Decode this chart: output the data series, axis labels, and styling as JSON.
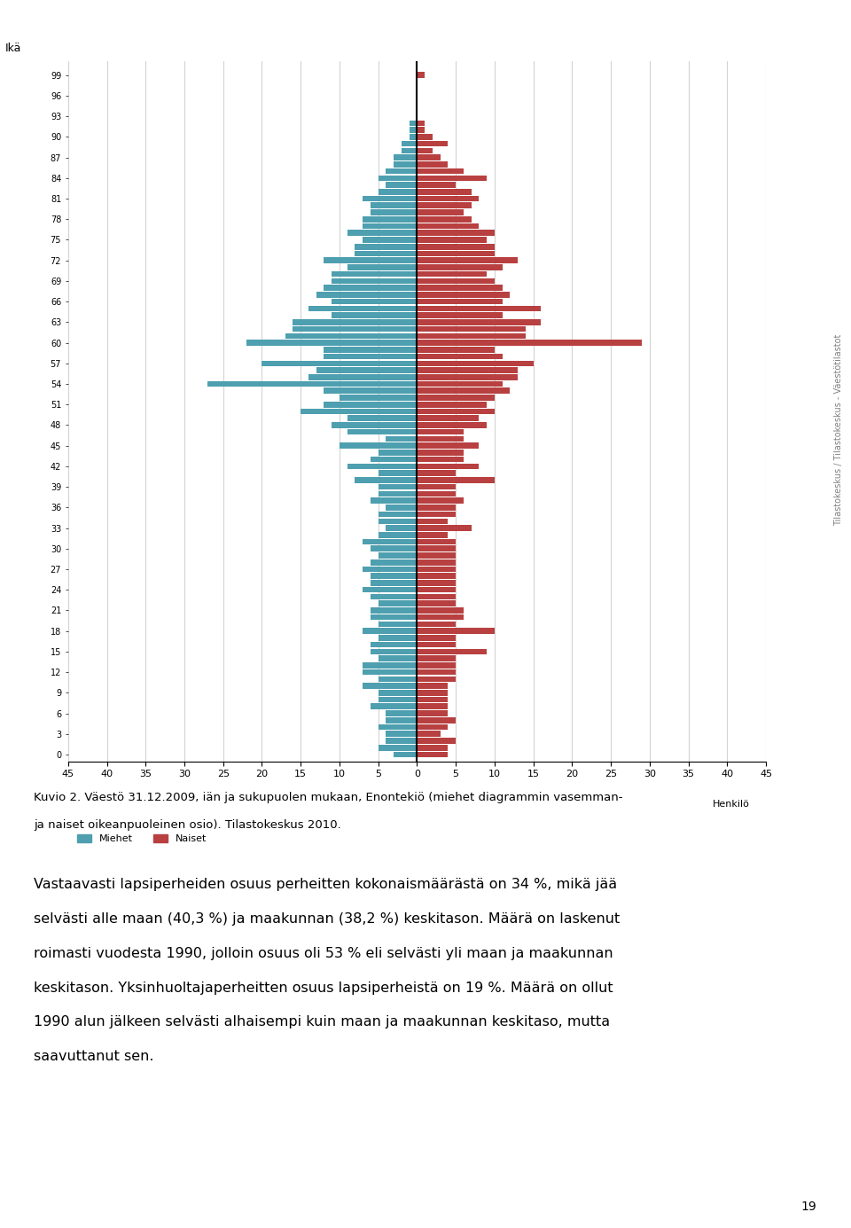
{
  "title_label": "Ikä",
  "xlabel": "Henkilö",
  "male_color": "#4E9FAF",
  "female_color": "#B84040",
  "caption_line1": "Kuvio 2. Väestö 31.12.2009, iän ja sukupuolen mukaan, Enontekiö (miehet diagrammin vasemman-",
  "caption_line2": "ja naiset oikeanpuoleinen osio). Tilastokeskus 2010.",
  "body_lines": [
    "Vastaavasti lapsiperheiden osuus perheitten kokonaismäärästä on 34 %, mikä jää",
    "selvästi alle maan (40,3 %) ja maakunnan (38,2 %) keskitason. Määrä on laskenut",
    "roimasti vuodesta 1990, jolloin osuus oli 53 % eli selvästi yli maan ja maakunnan",
    "keskitason. Yksinhuoltajaperheitten osuus lapsiperheistä on 19 %. Määrä on ollut",
    "1990 alun jälkeen selvästi alhaisempi kuin maan ja maakunnan keskitaso, mutta",
    "saavuttanut sen."
  ],
  "watermark": "Tilastokeskus / Tilastokeskus - Väestötilastot",
  "page_number": "19",
  "legend_male": "Miehet",
  "legend_female": "Naiset",
  "xlim": [
    -45,
    45
  ],
  "xticks": [
    -45,
    -40,
    -35,
    -30,
    -25,
    -20,
    -15,
    -10,
    -5,
    0,
    5,
    10,
    15,
    20,
    25,
    30,
    35,
    40,
    45
  ],
  "xticklabels": [
    "45",
    "40",
    "35",
    "30",
    "25",
    "20",
    "15",
    "10",
    "5",
    "0",
    "5",
    "10",
    "15",
    "20",
    "25",
    "30",
    "35",
    "40",
    "45"
  ],
  "ages": [
    0,
    1,
    2,
    3,
    4,
    5,
    6,
    7,
    8,
    9,
    10,
    11,
    12,
    13,
    14,
    15,
    16,
    17,
    18,
    19,
    20,
    21,
    22,
    23,
    24,
    25,
    26,
    27,
    28,
    29,
    30,
    31,
    32,
    33,
    34,
    35,
    36,
    37,
    38,
    39,
    40,
    41,
    42,
    43,
    44,
    45,
    46,
    47,
    48,
    49,
    50,
    51,
    52,
    53,
    54,
    55,
    56,
    57,
    58,
    59,
    60,
    61,
    62,
    63,
    64,
    65,
    66,
    67,
    68,
    69,
    70,
    71,
    72,
    73,
    74,
    75,
    76,
    77,
    78,
    79,
    80,
    81,
    82,
    83,
    84,
    85,
    86,
    87,
    88,
    89,
    90,
    91,
    92,
    93,
    94,
    95,
    96,
    97,
    98,
    99
  ],
  "males": [
    3,
    5,
    4,
    4,
    5,
    4,
    4,
    6,
    5,
    5,
    7,
    5,
    7,
    7,
    5,
    6,
    6,
    5,
    7,
    5,
    6,
    6,
    5,
    6,
    7,
    6,
    6,
    7,
    6,
    5,
    6,
    7,
    5,
    4,
    5,
    5,
    4,
    6,
    5,
    5,
    8,
    5,
    9,
    6,
    5,
    10,
    4,
    9,
    11,
    9,
    15,
    12,
    10,
    12,
    27,
    14,
    13,
    20,
    12,
    12,
    22,
    17,
    16,
    16,
    11,
    14,
    11,
    13,
    12,
    11,
    11,
    9,
    12,
    8,
    8,
    7,
    9,
    7,
    7,
    6,
    6,
    7,
    5,
    4,
    5,
    4,
    3,
    3,
    2,
    2,
    1,
    1,
    1,
    0,
    0,
    0,
    0,
    0,
    0,
    0
  ],
  "females": [
    4,
    4,
    5,
    3,
    4,
    5,
    4,
    4,
    4,
    4,
    4,
    5,
    5,
    5,
    5,
    9,
    5,
    5,
    10,
    5,
    6,
    6,
    5,
    5,
    5,
    5,
    5,
    5,
    5,
    5,
    5,
    5,
    4,
    7,
    4,
    5,
    5,
    6,
    5,
    5,
    10,
    5,
    8,
    6,
    6,
    8,
    6,
    6,
    9,
    8,
    10,
    9,
    10,
    12,
    11,
    13,
    13,
    15,
    11,
    10,
    29,
    14,
    14,
    16,
    11,
    16,
    11,
    12,
    11,
    10,
    9,
    11,
    13,
    10,
    10,
    9,
    10,
    8,
    7,
    6,
    7,
    8,
    7,
    5,
    9,
    6,
    4,
    3,
    2,
    4,
    2,
    1,
    1,
    0,
    0,
    0,
    0,
    0,
    0,
    1
  ]
}
